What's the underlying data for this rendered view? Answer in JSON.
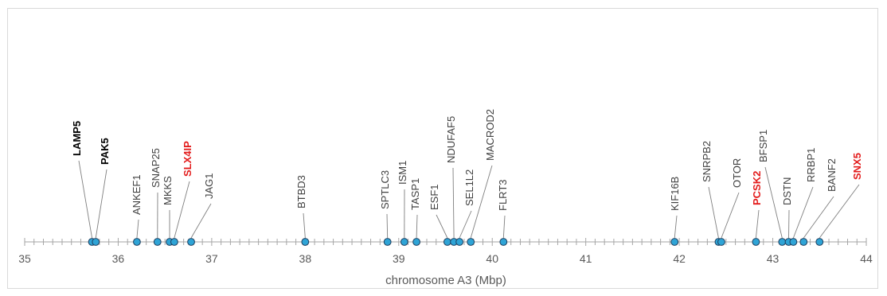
{
  "chart_data": {
    "type": "scatter",
    "title": "",
    "xlabel": "chromosome A3 (Mbp)",
    "ylabel": "",
    "xlim": [
      35,
      44
    ],
    "xticks": [
      "35",
      "36",
      "37",
      "38",
      "39",
      "40",
      "41",
      "42",
      "43",
      "44"
    ],
    "grid": false,
    "marker_color": "#2fa4d6",
    "highlight_color": "#e31c1c",
    "label_color": "#404040",
    "points": [
      {
        "label": "LAMP5",
        "x": 35.72,
        "style": "bold"
      },
      {
        "label": "PAK5",
        "x": 35.76,
        "style": "bold"
      },
      {
        "label": "ANKEF1",
        "x": 36.2,
        "style": "normal"
      },
      {
        "label": "SNAP25",
        "x": 36.42,
        "style": "normal"
      },
      {
        "label": "MKKS",
        "x": 36.55,
        "style": "normal"
      },
      {
        "label": "SLX4IP",
        "x": 36.6,
        "style": "red"
      },
      {
        "label": "JAG1",
        "x": 36.78,
        "style": "normal"
      },
      {
        "label": "BTBD3",
        "x": 38.0,
        "style": "normal"
      },
      {
        "label": "SPTLC3",
        "x": 38.88,
        "style": "normal"
      },
      {
        "label": "ISM1",
        "x": 39.06,
        "style": "normal"
      },
      {
        "label": "TASP1",
        "x": 39.19,
        "style": "normal"
      },
      {
        "label": "ESF1",
        "x": 39.52,
        "style": "normal"
      },
      {
        "label": "NDUFAF5",
        "x": 39.59,
        "style": "normal"
      },
      {
        "label": "SEL1L2",
        "x": 39.65,
        "style": "normal"
      },
      {
        "label": "MACROD2",
        "x": 39.77,
        "style": "normal"
      },
      {
        "label": "FLRT3",
        "x": 40.12,
        "style": "normal"
      },
      {
        "label": "KIF16B",
        "x": 41.95,
        "style": "normal"
      },
      {
        "label": "SNRPB2",
        "x": 42.42,
        "style": "normal"
      },
      {
        "label": "OTOR",
        "x": 42.45,
        "style": "normal"
      },
      {
        "label": "PCSK2",
        "x": 42.82,
        "style": "red"
      },
      {
        "label": "BFSP1",
        "x": 43.1,
        "style": "normal"
      },
      {
        "label": "DSTN",
        "x": 43.17,
        "style": "normal"
      },
      {
        "label": "RRBP1",
        "x": 43.22,
        "style": "normal"
      },
      {
        "label": "BANF2",
        "x": 43.33,
        "style": "normal"
      },
      {
        "label": "SNX5",
        "x": 43.5,
        "style": "red"
      }
    ]
  }
}
